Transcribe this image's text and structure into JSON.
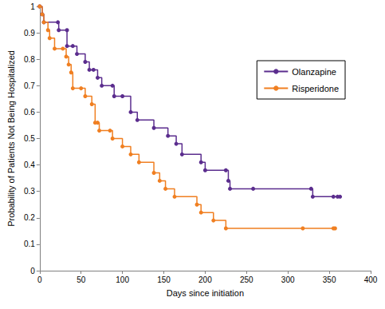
{
  "chart_data": {
    "type": "step",
    "x_label": "Days since initiation",
    "y_label": "Probability of Patients Not Being Hospitalized",
    "xlim": [
      0,
      400
    ],
    "xticks": [
      0,
      50,
      100,
      150,
      200,
      250,
      300,
      350,
      400
    ],
    "ylim": [
      0,
      1
    ],
    "yticks": [
      0,
      0.1,
      0.2,
      0.3,
      0.4,
      0.5,
      0.6,
      0.7,
      0.8,
      0.9,
      1
    ],
    "grid": false,
    "legend": "right",
    "series": [
      {
        "name": "Olanzapine",
        "color": "#5b2d8e",
        "marker": "circle",
        "line_style": "solid",
        "x": [
          0,
          3,
          5,
          22,
          23,
          33,
          33,
          40,
          45,
          55,
          60,
          65,
          70,
          75,
          88,
          90,
          100,
          110,
          118,
          138,
          155,
          165,
          172,
          195,
          200,
          225,
          228,
          230,
          258,
          328,
          330,
          355,
          360,
          363
        ],
        "values": [
          1,
          0.97,
          0.94,
          0.94,
          0.91,
          0.91,
          0.85,
          0.85,
          0.82,
          0.79,
          0.76,
          0.76,
          0.73,
          0.7,
          0.7,
          0.66,
          0.66,
          0.6,
          0.57,
          0.54,
          0.51,
          0.48,
          0.44,
          0.41,
          0.38,
          0.38,
          0.34,
          0.31,
          0.31,
          0.31,
          0.28,
          0.28,
          0.28,
          0.28
        ]
      },
      {
        "name": "Risperidone",
        "color": "#f07f21",
        "marker": "circle",
        "line_style": "solid",
        "x": [
          0,
          3,
          5,
          10,
          12,
          18,
          28,
          32,
          35,
          38,
          40,
          50,
          55,
          63,
          67,
          70,
          72,
          85,
          88,
          100,
          110,
          120,
          138,
          145,
          152,
          163,
          190,
          195,
          210,
          225,
          318,
          355,
          357
        ],
        "values": [
          1,
          0.97,
          0.94,
          0.91,
          0.88,
          0.84,
          0.84,
          0.81,
          0.78,
          0.75,
          0.69,
          0.69,
          0.66,
          0.63,
          0.56,
          0.56,
          0.53,
          0.53,
          0.5,
          0.47,
          0.44,
          0.41,
          0.37,
          0.34,
          0.31,
          0.28,
          0.25,
          0.22,
          0.19,
          0.16,
          0.16,
          0.16,
          0.16
        ]
      }
    ]
  }
}
